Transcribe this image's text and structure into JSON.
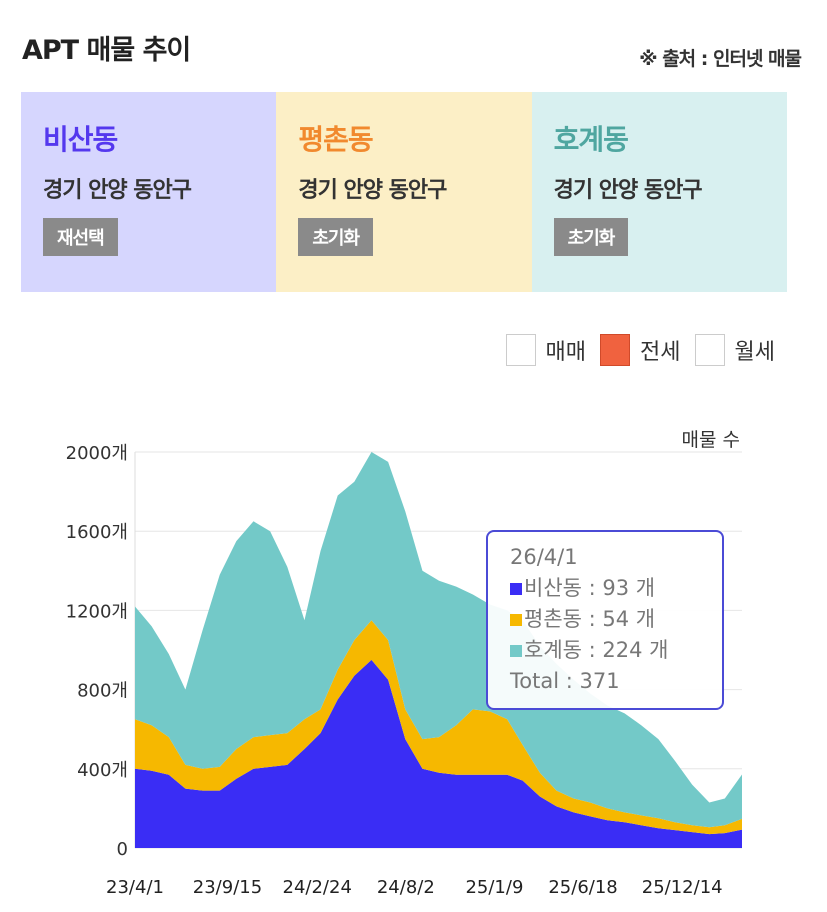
{
  "header": {
    "title": "APT 매물 추이",
    "source": "※ 출처 : 인터넷 매물"
  },
  "panels": [
    {
      "name": "비산동",
      "address": "경기 안양 동안구",
      "button": "재선택",
      "bg": "#d6d6fe",
      "color": "#5438ee"
    },
    {
      "name": "평촌동",
      "address": "경기 안양 동안구",
      "button": "초기화",
      "bg": "#fcefc6",
      "color": "#f1892e"
    },
    {
      "name": "호계동",
      "address": "경기 안양 동안구",
      "button": "초기화",
      "bg": "#d8f0f0",
      "color": "#4fa6a0"
    }
  ],
  "legend": [
    {
      "label": "매매",
      "checked": false
    },
    {
      "label": "전세",
      "checked": true,
      "color": "#f0623f"
    },
    {
      "label": "월세",
      "checked": false
    }
  ],
  "tooltip": {
    "date": "26/4/1",
    "rows": [
      {
        "label": "비산동 : 93 개",
        "color": "#3a2df5"
      },
      {
        "label": "평촌동 : 54 개",
        "color": "#f6b800"
      },
      {
        "label": "호계동 : 224 개",
        "color": "#73c9c8"
      }
    ],
    "total": "Total : 371"
  },
  "chart_data": {
    "type": "area",
    "stacked": true,
    "ylabel": "매물 수",
    "ylim": [
      0,
      2000
    ],
    "yticks": [
      "0",
      "400개",
      "800개",
      "1200개",
      "1600개",
      "2000개"
    ],
    "ytick_values": [
      0,
      400,
      800,
      1200,
      1600,
      2000
    ],
    "xticks": [
      "23/4/1",
      "23/9/15",
      "24/2/24",
      "24/8/2",
      "25/1/9",
      "25/6/18",
      "25/12/14"
    ],
    "x": [
      "23/4/1",
      "23/5/1",
      "23/6/1",
      "23/7/1",
      "23/8/1",
      "23/9/1",
      "23/10/1",
      "23/11/1",
      "23/12/1",
      "24/1/1",
      "24/2/1",
      "24/3/1",
      "24/4/1",
      "24/5/1",
      "24/6/1",
      "24/7/1",
      "24/8/1",
      "24/9/1",
      "24/10/1",
      "24/11/1",
      "24/12/1",
      "25/1/1",
      "25/2/1",
      "25/3/1",
      "25/4/1",
      "25/5/1",
      "25/6/1",
      "25/7/1",
      "25/8/1",
      "25/9/1",
      "25/10/1",
      "25/11/1",
      "25/12/1",
      "26/1/1",
      "26/2/1",
      "26/3/1",
      "26/4/1"
    ],
    "series": [
      {
        "name": "비산동",
        "color": "#3a2df5",
        "values": [
          400,
          390,
          370,
          300,
          290,
          290,
          350,
          400,
          410,
          420,
          500,
          580,
          750,
          870,
          950,
          850,
          550,
          400,
          380,
          370,
          370,
          370,
          370,
          340,
          260,
          210,
          180,
          160,
          140,
          130,
          115,
          100,
          90,
          80,
          70,
          75,
          93
        ]
      },
      {
        "name": "평촌동",
        "color": "#f6b800",
        "values": [
          250,
          230,
          190,
          120,
          110,
          120,
          150,
          160,
          160,
          160,
          150,
          120,
          150,
          180,
          200,
          200,
          150,
          150,
          180,
          250,
          330,
          320,
          280,
          180,
          120,
          80,
          70,
          70,
          60,
          50,
          50,
          50,
          40,
          35,
          35,
          40,
          54
        ]
      },
      {
        "name": "호계동",
        "color": "#73c9c8",
        "values": [
          570,
          500,
          420,
          380,
          700,
          970,
          1050,
          1090,
          1030,
          840,
          500,
          800,
          880,
          800,
          850,
          900,
          1000,
          850,
          790,
          700,
          580,
          540,
          550,
          630,
          640,
          640,
          600,
          550,
          520,
          500,
          455,
          400,
          310,
          205,
          125,
          135,
          224
        ]
      }
    ]
  }
}
